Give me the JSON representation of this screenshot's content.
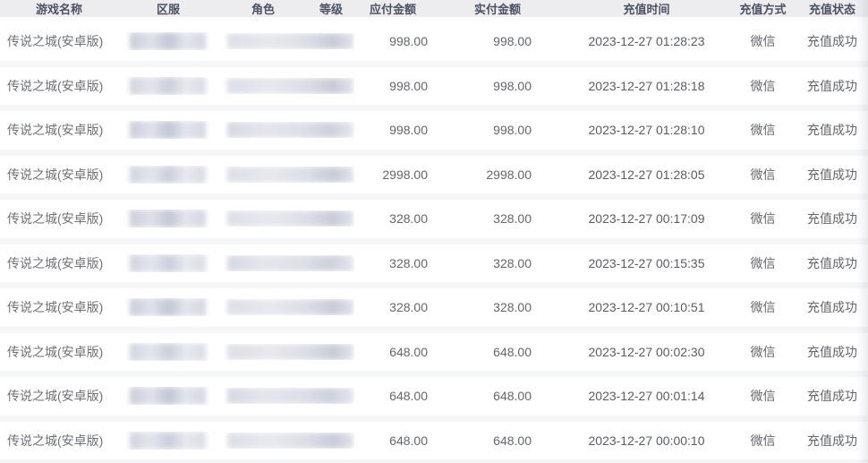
{
  "colors": {
    "header_bg": "#ededef",
    "header_text": "#4b5263",
    "body_text": "#63666c",
    "row_bg": "#ffffff",
    "row_separator": "#f5f6f8"
  },
  "table": {
    "columns": [
      {
        "key": "game",
        "label": "游戏名称"
      },
      {
        "key": "server",
        "label": "区服"
      },
      {
        "key": "role",
        "label": "角色"
      },
      {
        "key": "level",
        "label": "等级"
      },
      {
        "key": "amount_payable",
        "label": "应付金额"
      },
      {
        "key": "amount_paid",
        "label": "实付金额"
      },
      {
        "key": "time",
        "label": "充值时间"
      },
      {
        "key": "method",
        "label": "充值方式"
      },
      {
        "key": "status",
        "label": "充值状态"
      }
    ],
    "rows": [
      {
        "game": "传说之城(安卓版)",
        "server_redacted": true,
        "role_redacted": true,
        "amount_payable": "998.00",
        "amount_paid": "998.00",
        "time": "2023-12-27 01:28:23",
        "method": "微信",
        "status": "充值成功"
      },
      {
        "game": "传说之城(安卓版)",
        "server_redacted": true,
        "role_redacted": true,
        "amount_payable": "998.00",
        "amount_paid": "998.00",
        "time": "2023-12-27 01:28:18",
        "method": "微信",
        "status": "充值成功"
      },
      {
        "game": "传说之城(安卓版)",
        "server_redacted": true,
        "role_redacted": true,
        "amount_payable": "998.00",
        "amount_paid": "998.00",
        "time": "2023-12-27 01:28:10",
        "method": "微信",
        "status": "充值成功"
      },
      {
        "game": "传说之城(安卓版)",
        "server_redacted": true,
        "role_redacted": true,
        "amount_payable": "2998.00",
        "amount_paid": "2998.00",
        "time": "2023-12-27 01:28:05",
        "method": "微信",
        "status": "充值成功"
      },
      {
        "game": "传说之城(安卓版)",
        "server_redacted": true,
        "role_redacted": true,
        "amount_payable": "328.00",
        "amount_paid": "328.00",
        "time": "2023-12-27 00:17:09",
        "method": "微信",
        "status": "充值成功"
      },
      {
        "game": "传说之城(安卓版)",
        "server_redacted": true,
        "role_redacted": true,
        "amount_payable": "328.00",
        "amount_paid": "328.00",
        "time": "2023-12-27 00:15:35",
        "method": "微信",
        "status": "充值成功"
      },
      {
        "game": "传说之城(安卓版)",
        "server_redacted": true,
        "role_redacted": true,
        "amount_payable": "328.00",
        "amount_paid": "328.00",
        "time": "2023-12-27 00:10:51",
        "method": "微信",
        "status": "充值成功"
      },
      {
        "game": "传说之城(安卓版)",
        "server_redacted": true,
        "role_redacted": true,
        "amount_payable": "648.00",
        "amount_paid": "648.00",
        "time": "2023-12-27 00:02:30",
        "method": "微信",
        "status": "充值成功"
      },
      {
        "game": "传说之城(安卓版)",
        "server_redacted": true,
        "role_redacted": true,
        "amount_payable": "648.00",
        "amount_paid": "648.00",
        "time": "2023-12-27 00:01:14",
        "method": "微信",
        "status": "充值成功"
      },
      {
        "game": "传说之城(安卓版)",
        "server_redacted": true,
        "role_redacted": true,
        "amount_payable": "648.00",
        "amount_paid": "648.00",
        "time": "2023-12-27 00:00:10",
        "method": "微信",
        "status": "充值成功"
      }
    ]
  }
}
